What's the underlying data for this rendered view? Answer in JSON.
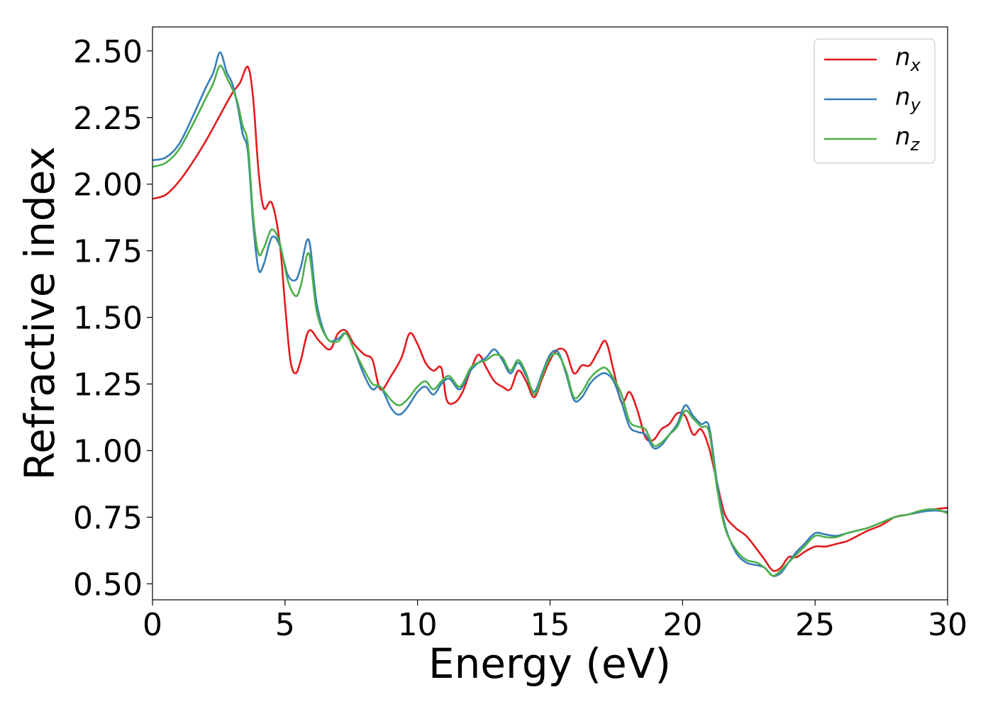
{
  "chart_data": {
    "type": "line",
    "title": "",
    "xlabel": "Energy (eV)",
    "ylabel": "Refractive index",
    "xlim": [
      0,
      30
    ],
    "ylim": [
      0.44,
      2.59
    ],
    "xticks": [
      0,
      5,
      10,
      15,
      20,
      25,
      30
    ],
    "xtick_labels": [
      "0",
      "5",
      "10",
      "15",
      "20",
      "25",
      "30"
    ],
    "yticks": [
      0.5,
      0.75,
      1.0,
      1.25,
      1.5,
      1.75,
      2.0,
      2.25,
      2.5
    ],
    "ytick_labels": [
      "0.50",
      "0.75",
      "1.00",
      "1.25",
      "1.50",
      "1.75",
      "2.00",
      "2.25",
      "2.50"
    ],
    "grid": false,
    "legend_position": "top-right",
    "series": [
      {
        "name": "n_x",
        "legend_base": "n",
        "legend_sub": "x",
        "color": "#e41a1c",
        "x": [
          0,
          0.5,
          1.0,
          1.5,
          2.0,
          2.5,
          3.0,
          3.3,
          3.6,
          3.8,
          4.0,
          4.2,
          4.5,
          4.8,
          5.0,
          5.2,
          5.4,
          5.6,
          5.9,
          6.3,
          6.7,
          7.0,
          7.3,
          7.6,
          8.0,
          8.3,
          8.6,
          9.0,
          9.4,
          9.7,
          10.0,
          10.3,
          10.6,
          10.9,
          11.1,
          11.4,
          11.7,
          12.0,
          12.3,
          12.6,
          12.9,
          13.2,
          13.5,
          13.8,
          14.1,
          14.4,
          14.7,
          15.0,
          15.3,
          15.6,
          15.9,
          16.2,
          16.5,
          16.8,
          17.1,
          17.4,
          17.7,
          18.0,
          18.3,
          18.6,
          18.9,
          19.2,
          19.5,
          19.8,
          20.1,
          20.4,
          20.7,
          21.0,
          21.3,
          21.6,
          22.0,
          22.4,
          22.8,
          23.1,
          23.4,
          23.7,
          24.0,
          24.3,
          24.6,
          25.0,
          25.4,
          25.8,
          26.2,
          26.6,
          27.0,
          27.5,
          28.0,
          28.5,
          29.0,
          29.5,
          30.0
        ],
        "y": [
          1.945,
          1.96,
          2.01,
          2.08,
          2.16,
          2.25,
          2.34,
          2.38,
          2.44,
          2.32,
          2.05,
          1.91,
          1.93,
          1.78,
          1.55,
          1.34,
          1.29,
          1.34,
          1.45,
          1.41,
          1.38,
          1.44,
          1.45,
          1.4,
          1.36,
          1.34,
          1.23,
          1.28,
          1.35,
          1.44,
          1.4,
          1.33,
          1.3,
          1.31,
          1.19,
          1.18,
          1.22,
          1.3,
          1.36,
          1.31,
          1.26,
          1.24,
          1.23,
          1.3,
          1.26,
          1.2,
          1.27,
          1.34,
          1.38,
          1.37,
          1.29,
          1.32,
          1.32,
          1.37,
          1.41,
          1.3,
          1.18,
          1.22,
          1.15,
          1.05,
          1.04,
          1.08,
          1.1,
          1.14,
          1.13,
          1.06,
          1.08,
          1.01,
          0.88,
          0.76,
          0.71,
          0.68,
          0.63,
          0.59,
          0.55,
          0.56,
          0.6,
          0.6,
          0.62,
          0.64,
          0.64,
          0.65,
          0.66,
          0.68,
          0.7,
          0.72,
          0.75,
          0.76,
          0.77,
          0.78,
          0.785
        ]
      },
      {
        "name": "n_y",
        "legend_base": "n",
        "legend_sub": "y",
        "color": "#377eb8",
        "x": [
          0,
          0.5,
          1.0,
          1.5,
          2.0,
          2.3,
          2.55,
          2.8,
          3.0,
          3.2,
          3.4,
          3.6,
          3.8,
          4.0,
          4.2,
          4.5,
          4.8,
          5.1,
          5.4,
          5.6,
          5.9,
          6.2,
          6.6,
          7.0,
          7.3,
          7.6,
          8.0,
          8.3,
          8.6,
          9.0,
          9.3,
          9.6,
          10.0,
          10.3,
          10.6,
          10.9,
          11.2,
          11.6,
          12.0,
          12.3,
          12.6,
          12.9,
          13.2,
          13.5,
          13.8,
          14.1,
          14.4,
          14.7,
          15.0,
          15.3,
          15.6,
          15.9,
          16.2,
          16.5,
          16.8,
          17.1,
          17.4,
          17.7,
          18.0,
          18.3,
          18.6,
          18.9,
          19.2,
          19.5,
          19.8,
          20.1,
          20.4,
          20.7,
          21.0,
          21.3,
          21.6,
          22.0,
          22.4,
          22.8,
          23.1,
          23.4,
          23.7,
          24.0,
          24.3,
          24.6,
          25.0,
          25.4,
          25.8,
          26.2,
          26.6,
          27.0,
          27.5,
          28.0,
          28.5,
          29.0,
          29.5,
          30.0
        ],
        "y": [
          2.09,
          2.1,
          2.15,
          2.25,
          2.36,
          2.42,
          2.495,
          2.42,
          2.38,
          2.3,
          2.19,
          2.12,
          1.85,
          1.68,
          1.7,
          1.8,
          1.77,
          1.66,
          1.64,
          1.69,
          1.79,
          1.55,
          1.42,
          1.42,
          1.44,
          1.38,
          1.28,
          1.23,
          1.24,
          1.16,
          1.135,
          1.16,
          1.22,
          1.24,
          1.21,
          1.25,
          1.27,
          1.23,
          1.3,
          1.33,
          1.35,
          1.38,
          1.34,
          1.29,
          1.33,
          1.28,
          1.22,
          1.29,
          1.36,
          1.37,
          1.29,
          1.19,
          1.2,
          1.25,
          1.28,
          1.29,
          1.26,
          1.18,
          1.09,
          1.07,
          1.06,
          1.01,
          1.02,
          1.06,
          1.1,
          1.17,
          1.13,
          1.1,
          1.09,
          0.88,
          0.72,
          0.62,
          0.58,
          0.57,
          0.56,
          0.53,
          0.54,
          0.58,
          0.62,
          0.65,
          0.69,
          0.685,
          0.68,
          0.69,
          0.7,
          0.71,
          0.73,
          0.75,
          0.76,
          0.77,
          0.775,
          0.77
        ]
      },
      {
        "name": "n_z",
        "legend_base": "n",
        "legend_sub": "z",
        "color": "#4daf4a",
        "x": [
          0,
          0.5,
          1.0,
          1.5,
          2.0,
          2.3,
          2.55,
          2.8,
          3.0,
          3.2,
          3.4,
          3.6,
          3.8,
          4.0,
          4.2,
          4.5,
          4.8,
          5.1,
          5.4,
          5.6,
          5.9,
          6.2,
          6.6,
          7.0,
          7.3,
          7.6,
          8.0,
          8.3,
          8.6,
          9.0,
          9.3,
          9.6,
          10.0,
          10.3,
          10.6,
          10.9,
          11.2,
          11.6,
          12.0,
          12.3,
          12.6,
          12.9,
          13.2,
          13.5,
          13.8,
          14.1,
          14.4,
          14.7,
          15.0,
          15.3,
          15.6,
          15.9,
          16.2,
          16.5,
          16.8,
          17.1,
          17.4,
          17.7,
          18.0,
          18.3,
          18.6,
          18.9,
          19.2,
          19.5,
          19.8,
          20.1,
          20.4,
          20.7,
          21.0,
          21.3,
          21.6,
          22.0,
          22.4,
          22.8,
          23.1,
          23.4,
          23.7,
          24.0,
          24.3,
          24.6,
          25.0,
          25.4,
          25.8,
          26.2,
          26.6,
          27.0,
          27.5,
          28.0,
          28.5,
          29.0,
          29.5,
          30.0
        ],
        "y": [
          2.065,
          2.08,
          2.13,
          2.22,
          2.32,
          2.38,
          2.445,
          2.4,
          2.36,
          2.31,
          2.22,
          2.15,
          1.88,
          1.74,
          1.76,
          1.83,
          1.78,
          1.64,
          1.58,
          1.62,
          1.74,
          1.52,
          1.42,
          1.41,
          1.44,
          1.38,
          1.3,
          1.25,
          1.24,
          1.19,
          1.17,
          1.19,
          1.24,
          1.26,
          1.23,
          1.26,
          1.28,
          1.24,
          1.31,
          1.33,
          1.34,
          1.36,
          1.35,
          1.3,
          1.34,
          1.29,
          1.21,
          1.28,
          1.35,
          1.36,
          1.3,
          1.2,
          1.22,
          1.27,
          1.3,
          1.31,
          1.27,
          1.21,
          1.11,
          1.09,
          1.08,
          1.02,
          1.03,
          1.06,
          1.09,
          1.15,
          1.12,
          1.09,
          1.07,
          0.86,
          0.71,
          0.63,
          0.59,
          0.58,
          0.56,
          0.53,
          0.55,
          0.58,
          0.61,
          0.64,
          0.68,
          0.675,
          0.675,
          0.69,
          0.7,
          0.71,
          0.73,
          0.75,
          0.76,
          0.775,
          0.78,
          0.765
        ]
      }
    ]
  }
}
